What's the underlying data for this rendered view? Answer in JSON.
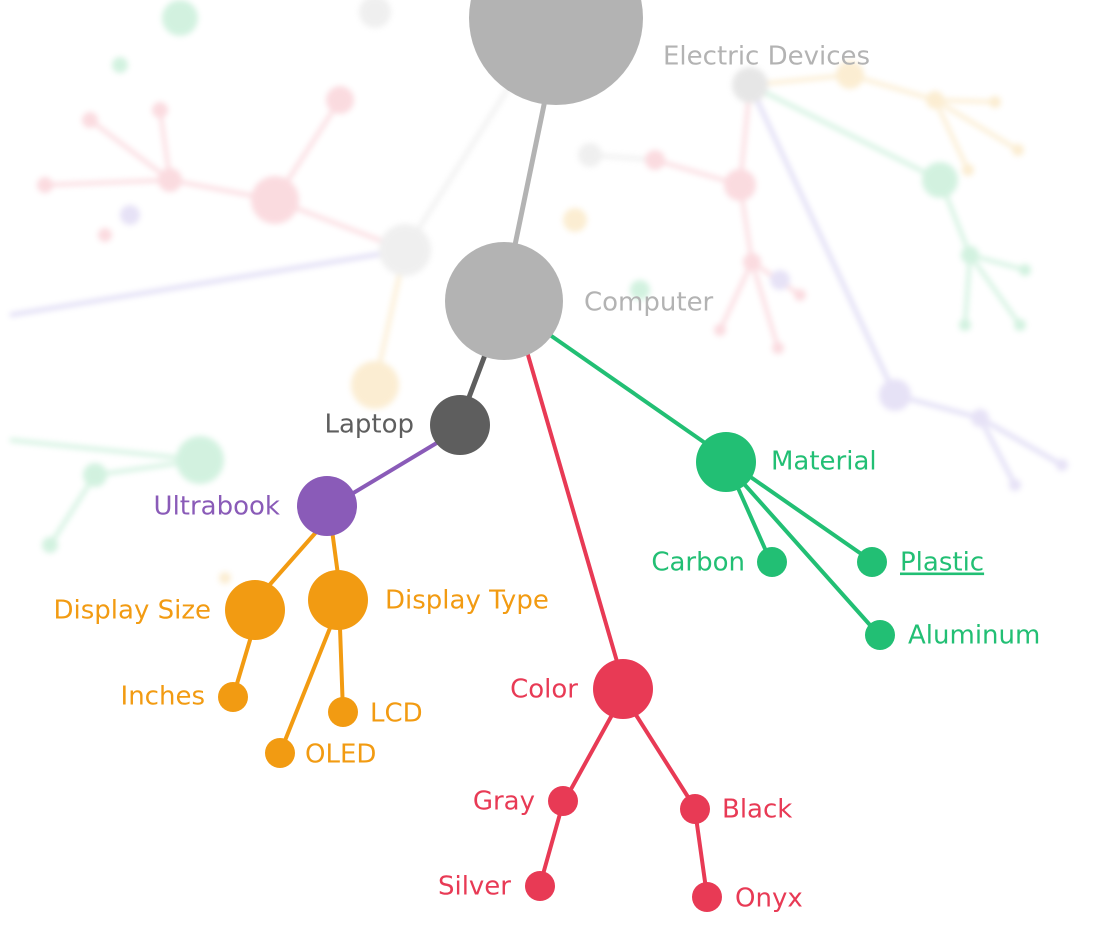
{
  "colors": {
    "gray": "#b3b3b3",
    "dark_gray": "#5e5e5e",
    "purple": "#8a5bb8",
    "orange": "#f29b12",
    "red": "#e83a55",
    "green": "#22bf74"
  },
  "nodes": {
    "electric_devices": {
      "label": "Electric Devices",
      "color": "gray"
    },
    "computer": {
      "label": "Computer",
      "color": "gray"
    },
    "laptop": {
      "label": "Laptop",
      "color": "dark_gray"
    },
    "ultrabook": {
      "label": "Ultrabook",
      "color": "purple"
    },
    "display_size": {
      "label": "Display Size",
      "color": "orange"
    },
    "display_type": {
      "label": "Display Type",
      "color": "orange"
    },
    "inches": {
      "label": "Inches",
      "color": "orange"
    },
    "lcd": {
      "label": "LCD",
      "color": "orange"
    },
    "oled": {
      "label": "OLED",
      "color": "orange"
    },
    "color": {
      "label": "Color",
      "color": "red"
    },
    "gray_node": {
      "label": "Gray",
      "color": "red"
    },
    "black": {
      "label": "Black",
      "color": "red"
    },
    "silver": {
      "label": "Silver",
      "color": "red"
    },
    "onyx": {
      "label": "Onyx",
      "color": "red"
    },
    "material": {
      "label": "Material",
      "color": "green"
    },
    "carbon": {
      "label": "Carbon",
      "color": "green"
    },
    "plastic": {
      "label": "Plastic",
      "color": "green"
    },
    "aluminum": {
      "label": "Aluminum",
      "color": "green"
    }
  }
}
